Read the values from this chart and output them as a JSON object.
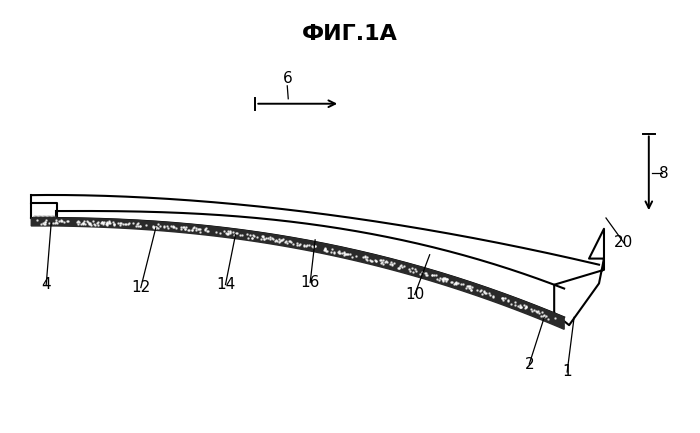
{
  "title": "ФИГ.1А",
  "title_fontsize": 16,
  "title_fontweight": "bold",
  "bg_color": "#ffffff",
  "line_color": "#000000"
}
